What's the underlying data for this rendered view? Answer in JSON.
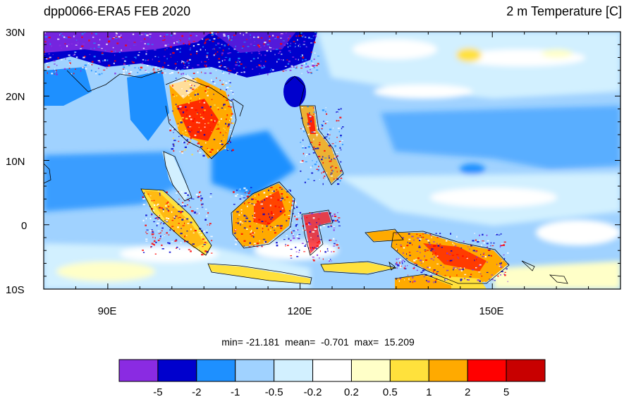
{
  "title_left": "dpp0066-ERA5 FEB 2020",
  "title_right": "2 m Temperature [C]",
  "stats": "min= -21.181  mean=  -0.701  max=  15.209",
  "axes": {
    "lat_labels": [
      "30N",
      "20N",
      "10N",
      "0",
      "10S"
    ],
    "lon_labels": [
      "90E",
      "120E",
      "150E"
    ]
  },
  "colorbar": {
    "colors": [
      "#8a2be2",
      "#0000cd",
      "#1e90ff",
      "#a0d2ff",
      "#d2f0ff",
      "#ffffff",
      "#ffffc8",
      "#ffe13c",
      "#ffaa00",
      "#ff0000",
      "#c80000"
    ],
    "labels": [
      "-5",
      "-2",
      "-1",
      "-0.5",
      "-0.2",
      "0.2",
      "0.5",
      "1",
      "2",
      "5"
    ]
  },
  "colors": {
    "ocean_base": "#a0d2ff",
    "land_warm": "#ffaa00",
    "land_hot": "#ff0000",
    "cold": "#0000cd",
    "very_cold": "#8a2be2"
  }
}
